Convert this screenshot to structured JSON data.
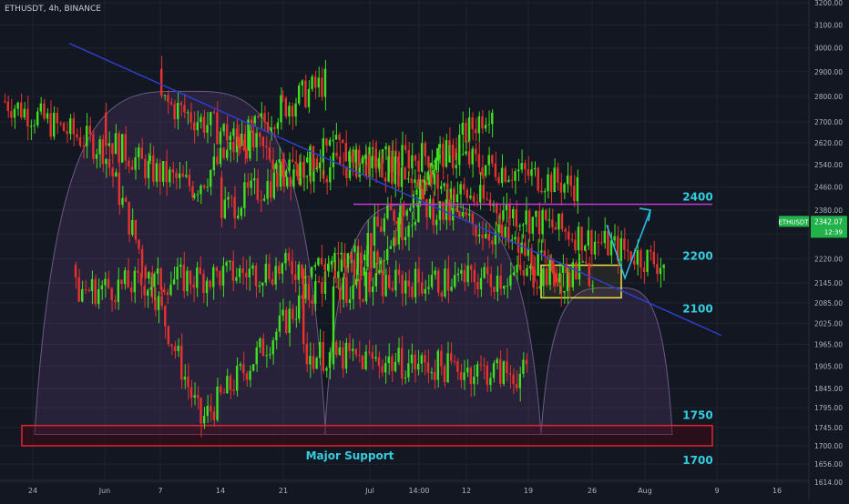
{
  "symbol_title": "ETHUSDT, 4h, BINANCE",
  "colors": {
    "background": "#131722",
    "grid": "#1f2330",
    "axis_text": "#aeb3bf",
    "up": "#3fe01f",
    "down": "#e8322e",
    "trendline": "#2f3ec9",
    "resistance": "#c13ad0",
    "arc_fill": "rgba(92,60,120,0.28)",
    "arc_stroke": "#6c5a86",
    "support_box": "#e32431",
    "zone_box": "#f5e24a",
    "annotation_text": "#35cde0",
    "arrow": "#27bde0",
    "price_tag": "#21b24a"
  },
  "chart_data": {
    "type": "candlestick",
    "title": "ETHUSDT, 4h, BINANCE",
    "y_axis_ticks": [
      3200,
      3100,
      3000,
      2900,
      2800,
      2700,
      2620,
      2540,
      2460,
      2380,
      2300,
      2220,
      2145,
      2085,
      2025,
      1965,
      1905,
      1845,
      1795,
      1745,
      1700,
      1656,
      1614
    ],
    "x_axis_ticks": [
      "24",
      "Jun",
      "7",
      "14",
      "21",
      "Jul",
      "14:00",
      "12",
      "19",
      "26",
      "Aug",
      "9",
      "16"
    ],
    "ylim": [
      1600,
      3200
    ],
    "log_scale": true,
    "grid": true,
    "current_price": "2342.07",
    "price_tag_symbol": "ETHUSDT",
    "price_tag_countdown": "12:39",
    "price_path": [
      [
        "24",
        2780
      ],
      [
        "24",
        2600
      ],
      [
        "24",
        1760
      ],
      [
        "24",
        2080
      ],
      [
        "24",
        2380
      ],
      [
        "24",
        2780
      ],
      [
        "Jun",
        2640
      ],
      [
        "Jun",
        2520
      ],
      [
        "Jun",
        2460
      ],
      [
        "Jun",
        2620
      ],
      [
        "Jun",
        2760
      ],
      [
        "Jun",
        2860
      ],
      [
        "7",
        2780
      ],
      [
        "7",
        2520
      ],
      [
        "7",
        2580
      ],
      [
        "7",
        2460
      ],
      [
        "14",
        2380
      ],
      [
        "14",
        2600
      ],
      [
        "14",
        2460
      ],
      [
        "14",
        2320
      ],
      [
        "14",
        2200
      ],
      [
        "21",
        2060
      ],
      [
        "21",
        1840
      ],
      [
        "21",
        1900
      ],
      [
        "21",
        1745
      ],
      [
        "21",
        1820
      ],
      [
        "21",
        2120
      ],
      [
        "Jul",
        2220
      ],
      [
        "Jul",
        2300
      ],
      [
        "14:00",
        2400
      ],
      [
        "14:00",
        2300
      ],
      [
        "14:00",
        2140
      ],
      [
        "12",
        2180
      ],
      [
        "12",
        2030
      ],
      [
        "12",
        1940
      ],
      [
        "19",
        1880
      ],
      [
        "19",
        1860
      ],
      [
        "19",
        1740
      ],
      [
        "19",
        1990
      ],
      [
        "19",
        2130
      ],
      [
        "26",
        2180
      ],
      [
        "26",
        2380
      ],
      [
        "26",
        2340
      ]
    ],
    "annotations": {
      "resistance_level": "2400",
      "zone_top": "2200",
      "zone_bottom": "2100",
      "support_top": "1750",
      "support_bottom": "1700",
      "support_label": "Major Support"
    }
  }
}
